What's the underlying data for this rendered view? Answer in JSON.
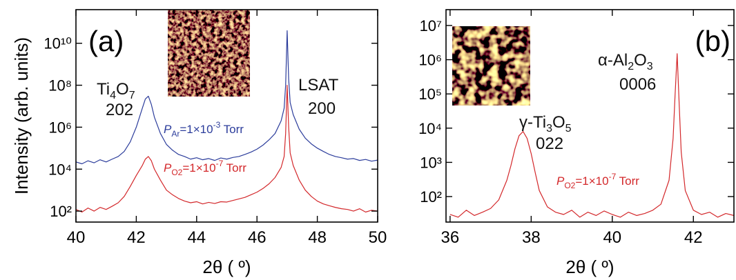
{
  "chart_data": [
    {
      "type": "line",
      "panel_label": "(a)",
      "x_label": "2θ ( º)",
      "y_label": "Intensity (arb. units)",
      "xlim": [
        40,
        50
      ],
      "xticks": [
        40,
        42,
        44,
        46,
        48,
        50
      ],
      "ylim": [
        30,
        400000000000
      ],
      "log_y": true,
      "yticks": [
        {
          "value": 100,
          "label": "10²"
        },
        {
          "value": 10000,
          "label": "10⁴"
        },
        {
          "value": 1000000,
          "label": "10⁶"
        },
        {
          "value": 100000000,
          "label": "10⁸"
        },
        {
          "value": 10000000000,
          "label": "10¹⁰"
        }
      ],
      "x": [
        40,
        40.2,
        40.4,
        40.6,
        40.8,
        41,
        41.2,
        41.4,
        41.6,
        41.8,
        42,
        42.2,
        42.3,
        42.4,
        42.5,
        42.6,
        42.8,
        43,
        43.2,
        43.4,
        43.6,
        43.8,
        44,
        44.2,
        44.4,
        44.6,
        44.8,
        45,
        45.2,
        45.4,
        45.6,
        45.8,
        46,
        46.2,
        46.4,
        46.6,
        46.8,
        46.9,
        46.95,
        47,
        47.05,
        47.1,
        47.2,
        47.4,
        47.6,
        47.8,
        48,
        48.2,
        48.4,
        48.6,
        48.8,
        49,
        49.2,
        49.4,
        49.6,
        49.8,
        50
      ],
      "series": [
        {
          "color": "#2b3c9b",
          "values": [
            22000,
            18000,
            25000,
            20000,
            28000,
            22000,
            30000,
            40000,
            70000,
            200000,
            1000000,
            8000000,
            22000000,
            30000000,
            12000000,
            3000000,
            500000,
            150000,
            80000,
            50000,
            40000,
            30000,
            35000,
            28000,
            32000,
            26000,
            34000,
            30000,
            36000,
            40000,
            50000,
            65000,
            90000,
            140000,
            250000,
            500000,
            2000000,
            8000000,
            100000000,
            40000000000,
            200000000,
            15000000,
            4000000,
            800000,
            300000,
            160000,
            100000,
            70000,
            50000,
            40000,
            35000,
            30000,
            32000,
            26000,
            29000,
            24000,
            27000
          ]
        },
        {
          "color": "#d3272a",
          "values": [
            120,
            90,
            140,
            100,
            150,
            120,
            170,
            250,
            500,
            1500,
            5000,
            15000,
            30000,
            40000,
            25000,
            10000,
            3000,
            1000,
            600,
            400,
            300,
            250,
            280,
            220,
            260,
            230,
            280,
            270,
            320,
            380,
            450,
            600,
            800,
            1200,
            2000,
            4000,
            12000,
            40000,
            500000,
            100000000,
            1000000,
            60000,
            15000,
            3000,
            1000,
            500,
            300,
            220,
            180,
            150,
            130,
            120,
            100,
            130,
            90,
            110,
            100
          ]
        }
      ],
      "annotations": [
        [
          "Ti",
          "4",
          "O",
          "7"
        ],
        [
          "202"
        ],
        [
          "LSAT"
        ],
        [
          "200"
        ],
        [
          "P",
          "Ar",
          "=1×10",
          "-3",
          " Torr"
        ],
        [
          "P",
          "O2",
          "=1×10",
          "-7",
          " Torr"
        ]
      ]
    },
    {
      "type": "line",
      "panel_label": "(b)",
      "x_label": "2θ ( º)",
      "xlim": [
        35.9,
        43
      ],
      "xticks": [
        36,
        38,
        40,
        42
      ],
      "ylim": [
        18,
        29000000
      ],
      "log_y": true,
      "yticks": [
        {
          "value": 100,
          "label": "10²"
        },
        {
          "value": 1000,
          "label": "10³"
        },
        {
          "value": 10000,
          "label": "10⁴"
        },
        {
          "value": 100000,
          "label": "10⁵"
        },
        {
          "value": 1000000,
          "label": "10⁶"
        },
        {
          "value": 10000000,
          "label": "10⁷"
        }
      ],
      "x": [
        36,
        36.2,
        36.4,
        36.6,
        36.8,
        37,
        37.2,
        37.4,
        37.5,
        37.6,
        37.7,
        37.8,
        37.9,
        38,
        38.1,
        38.2,
        38.4,
        38.6,
        38.8,
        39,
        39.2,
        39.4,
        39.6,
        39.8,
        40,
        40.2,
        40.4,
        40.6,
        40.8,
        41,
        41.2,
        41.4,
        41.5,
        41.55,
        41.6,
        41.65,
        41.7,
        41.8,
        42,
        42.2,
        42.4,
        42.6,
        42.8,
        43
      ],
      "series": [
        {
          "color": "#d3272a",
          "values": [
            30,
            25,
            40,
            28,
            35,
            45,
            80,
            300,
            800,
            2500,
            6000,
            8000,
            5000,
            1800,
            500,
            150,
            50,
            35,
            30,
            40,
            25,
            35,
            28,
            38,
            30,
            25,
            35,
            28,
            32,
            40,
            60,
            300,
            5000,
            100000,
            1500000,
            50000,
            2000,
            150,
            40,
            30,
            35,
            25,
            32,
            28
          ]
        }
      ],
      "annotations": [
        [
          "α-Al",
          "2",
          "O",
          "3"
        ],
        [
          "0006"
        ],
        [
          "γ-Ti",
          "3",
          "O",
          "5"
        ],
        [
          "022"
        ],
        [
          "P",
          "O2",
          "=1×10",
          "-7",
          " Torr"
        ]
      ]
    }
  ]
}
